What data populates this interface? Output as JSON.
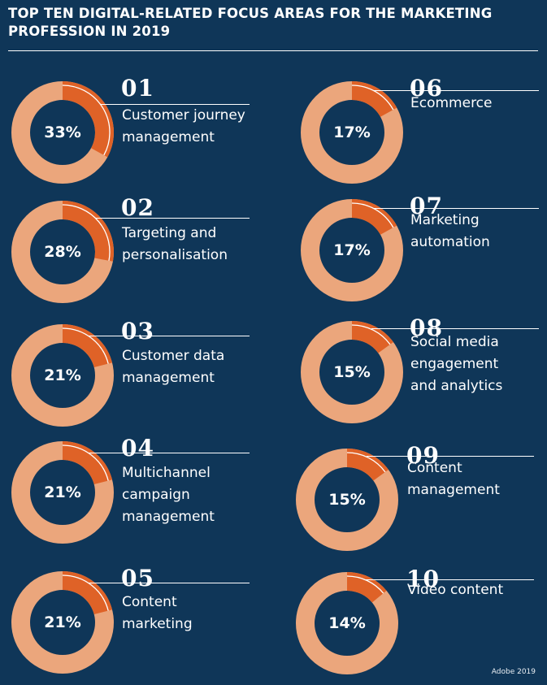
{
  "title": "Top ten digital-related focus areas for the marketing profession in 2019",
  "source": "Adobe 2019",
  "colors": {
    "background": "#0f3658",
    "ring": "#eba67c",
    "highlight": "#df6227",
    "line": "#ffffff"
  },
  "chart_data": {
    "type": "pie",
    "title": "Top ten digital-related focus areas for the marketing profession in 2019",
    "unit": "%",
    "items": [
      {
        "rank": "01",
        "label": "Customer journey\nmanagement",
        "value": 33,
        "value_label": "33%"
      },
      {
        "rank": "02",
        "label": "Targeting and\npersonalisation",
        "value": 28,
        "value_label": "28%"
      },
      {
        "rank": "03",
        "label": "Customer data\nmanagement",
        "value": 21,
        "value_label": "21%"
      },
      {
        "rank": "04",
        "label": "Multichannel\ncampaign\nmanagement",
        "value": 21,
        "value_label": "21%"
      },
      {
        "rank": "05",
        "label": "Content\nmarketing",
        "value": 21,
        "value_label": "21%"
      },
      {
        "rank": "06",
        "label": "Ecommerce",
        "value": 17,
        "value_label": "17%"
      },
      {
        "rank": "07",
        "label": "Marketing\nautomation",
        "value": 17,
        "value_label": "17%"
      },
      {
        "rank": "08",
        "label": "Social media\nengagement\nand analytics",
        "value": 15,
        "value_label": "15%"
      },
      {
        "rank": "09",
        "label": "Content\nmanagement",
        "value": 15,
        "value_label": "15%"
      },
      {
        "rank": "10",
        "label": "Video content",
        "value": 14,
        "value_label": "14%"
      }
    ]
  }
}
